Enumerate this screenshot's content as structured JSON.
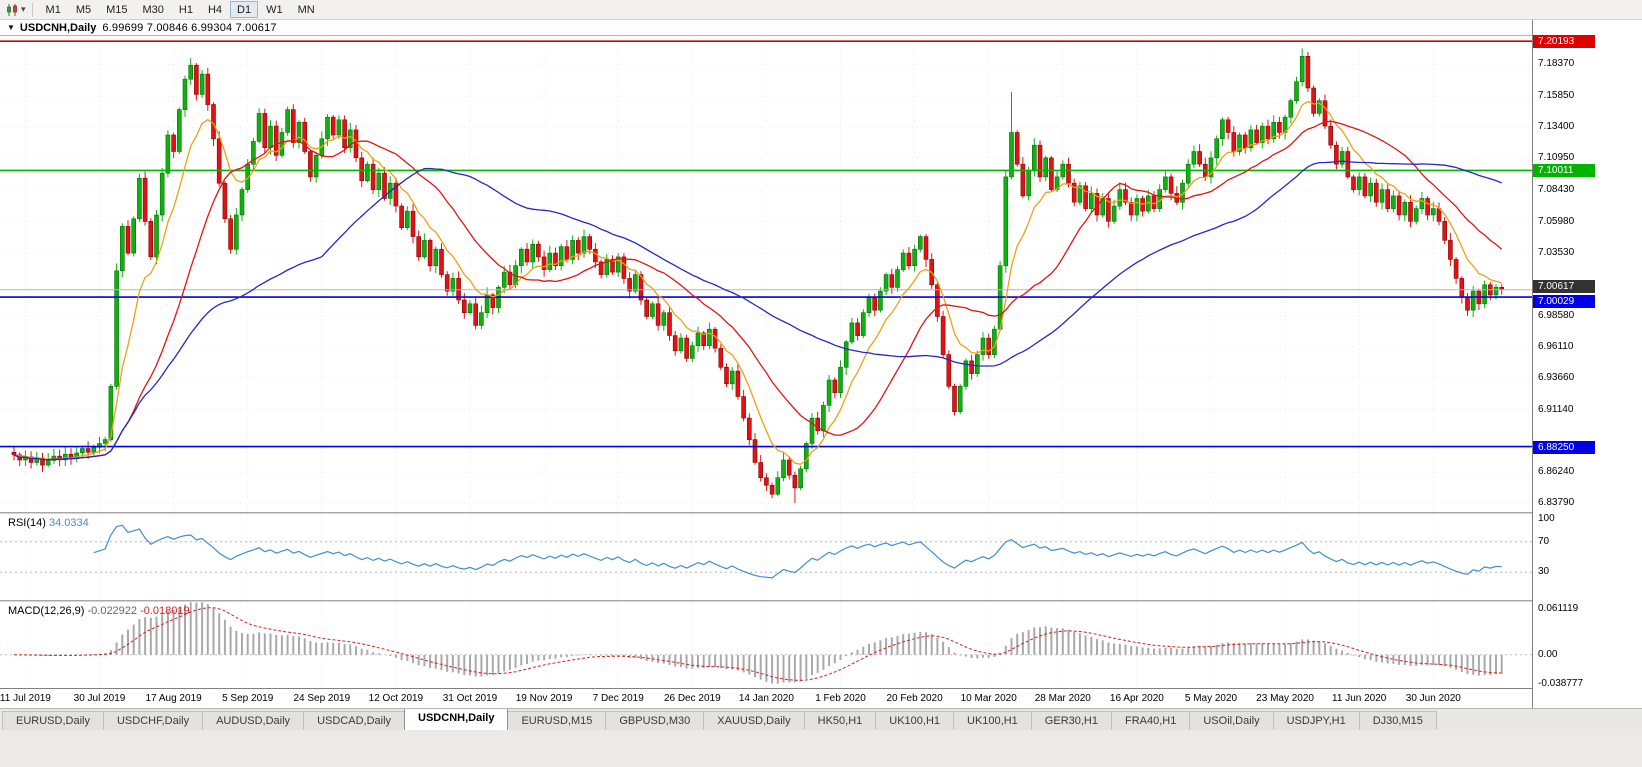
{
  "toolbar": {
    "timeframes": [
      "M1",
      "M5",
      "M15",
      "M30",
      "H1",
      "H4",
      "D1",
      "W1",
      "MN"
    ],
    "active_timeframe": "D1"
  },
  "icons": {
    "dropdown_caret": "▾",
    "caption_arrow": "▼"
  },
  "chart_header": {
    "symbol_period": "USDCNH,Daily",
    "ohlc": "6.99699 7.00846 6.99304 7.00617"
  },
  "tabs": {
    "active": "USDCNH,Daily",
    "items": [
      "EURUSD,Daily",
      "USDCHF,Daily",
      "AUDUSD,Daily",
      "USDCAD,Daily",
      "USDCNH,Daily",
      "EURUSD,M15",
      "GBPUSD,M30",
      "XAUUSD,Daily",
      "HK50,H1",
      "UK100,H1",
      "UK100,H1",
      "GER30,H1",
      "FRA40,H1",
      "USOil,Daily",
      "USDJPY,H1",
      "DJ30,M15"
    ]
  },
  "chart_data": {
    "type": "candlestick",
    "title": "USDCNH Daily",
    "symbol": "USDCNH",
    "timeframe": "Daily",
    "current_bar_ohlc": {
      "open": 6.99699,
      "high": 7.00846,
      "low": 6.99304,
      "close": 7.00617
    },
    "price_range": {
      "min": 6.831,
      "max": 7.206
    },
    "up_color": "#10b010",
    "up_border": "#067306",
    "down_color": "#e01212",
    "down_border": "#8c0606",
    "price_axis_ticks": [
      "7.18370",
      "7.15850",
      "7.13400",
      "7.10950",
      "7.08430",
      "7.05980",
      "7.03530",
      "6.98580",
      "6.96110",
      "6.93660",
      "6.91140",
      "6.86240",
      "6.83790"
    ],
    "x_labels": [
      "11 Jul 2019",
      "30 Jul 2019",
      "17 Aug 2019",
      "5 Sep 2019",
      "24 Sep 2019",
      "12 Oct 2019",
      "31 Oct 2019",
      "19 Nov 2019",
      "7 Dec 2019",
      "26 Dec 2019",
      "14 Jan 2020",
      "1 Feb 2020",
      "20 Feb 2020",
      "10 Mar 2020",
      "28 Mar 2020",
      "16 Apr 2020",
      "5 May 2020",
      "23 May 2020",
      "11 Jun 2020",
      "30 Jun 2020"
    ],
    "label_start_index": 2,
    "label_step": 13,
    "first_open": 6.878,
    "closes": [
      6.876,
      6.872,
      6.8745,
      6.87,
      6.8735,
      6.868,
      6.8715,
      6.875,
      6.872,
      6.8765,
      6.873,
      6.8775,
      6.881,
      6.878,
      6.882,
      6.885,
      6.888,
      6.93,
      7.021,
      7.056,
      7.035,
      7.062,
      7.094,
      7.06,
      7.032,
      7.065,
      7.098,
      7.128,
      7.115,
      7.148,
      7.172,
      7.183,
      7.16,
      7.176,
      7.152,
      7.125,
      7.09,
      7.062,
      7.038,
      7.065,
      7.085,
      7.105,
      7.123,
      7.145,
      7.118,
      7.135,
      7.112,
      7.13,
      7.148,
      7.122,
      7.138,
      7.115,
      7.095,
      7.112,
      7.125,
      7.142,
      7.128,
      7.14,
      7.118,
      7.132,
      7.11,
      7.092,
      7.105,
      7.085,
      7.098,
      7.078,
      7.09,
      7.072,
      7.055,
      7.068,
      7.048,
      7.032,
      7.045,
      7.025,
      7.038,
      7.018,
      7.005,
      7.015,
      6.998,
      6.988,
      6.995,
      6.978,
      6.988,
      7.002,
      6.992,
      7.008,
      7.02,
      7.01,
      7.025,
      7.038,
      7.028,
      7.042,
      7.032,
      7.022,
      7.035,
      7.025,
      7.04,
      7.03,
      7.045,
      7.035,
      7.048,
      7.038,
      7.028,
      7.018,
      7.03,
      7.02,
      7.032,
      7.015,
      7.005,
      7.018,
      6.998,
      6.985,
      6.995,
      6.978,
      6.988,
      6.97,
      6.958,
      6.968,
      6.952,
      6.962,
      6.972,
      6.962,
      6.975,
      6.96,
      6.945,
      6.932,
      6.942,
      6.922,
      6.905,
      6.888,
      6.87,
      6.858,
      6.852,
      6.845,
      6.858,
      6.872,
      6.86,
      6.85,
      6.865,
      6.885,
      6.905,
      6.895,
      6.915,
      6.935,
      6.925,
      6.945,
      6.965,
      6.98,
      6.97,
      6.988,
      7.0,
      6.99,
      7.005,
      7.018,
      7.008,
      7.022,
      7.035,
      7.025,
      7.038,
      7.048,
      7.03,
      7.01,
      6.985,
      6.955,
      6.93,
      6.91,
      6.93,
      6.95,
      6.94,
      6.955,
      6.968,
      6.955,
      6.975,
      7.025,
      7.095,
      7.13,
      7.105,
      7.08,
      7.1,
      7.12,
      7.095,
      7.11,
      7.085,
      7.095,
      7.105,
      7.09,
      7.075,
      7.088,
      7.07,
      7.082,
      7.065,
      7.078,
      7.06,
      7.072,
      7.085,
      7.075,
      7.065,
      7.078,
      7.068,
      7.08,
      7.07,
      7.085,
      7.095,
      7.082,
      7.075,
      7.09,
      7.105,
      7.115,
      7.105,
      7.095,
      7.11,
      7.125,
      7.14,
      7.13,
      7.115,
      7.128,
      7.118,
      7.132,
      7.122,
      7.135,
      7.125,
      7.138,
      7.13,
      7.142,
      7.155,
      7.17,
      7.19,
      7.165,
      7.145,
      7.155,
      7.135,
      7.12,
      7.105,
      7.115,
      7.095,
      7.085,
      7.095,
      7.08,
      7.09,
      7.075,
      7.085,
      7.07,
      7.08,
      7.065,
      7.075,
      7.06,
      7.07,
      7.078,
      7.065,
      7.07,
      7.06,
      7.045,
      7.03,
      7.015,
      7.0,
      6.99,
      7.005,
      6.995,
      7.01,
      7.002,
      7.008,
      7.00617
    ],
    "high_overrides": {
      "31": 7.1885,
      "175": 7.162,
      "226": 7.1962
    },
    "low_overrides": {
      "133": 6.842,
      "137": 6.838,
      "255": 6.9855
    },
    "horizontal_lines": [
      {
        "label": "7.20193",
        "value": 7.20193,
        "color": "#e00000"
      },
      {
        "label": "7.10011",
        "value": 7.10011,
        "color": "#00b400"
      },
      {
        "label": "7.00029",
        "value": 7.00029,
        "color": "#0000e6",
        "badge_dy": 4
      },
      {
        "label": "6.88250",
        "value": 6.8825,
        "color": "#0000e6",
        "badge_dy": 0
      }
    ],
    "current_price": {
      "label": "7.00617",
      "value": 7.00617,
      "line_color": "#b5b5b5",
      "badge_color": "#333333",
      "badge_dy": -4
    },
    "moving_averages": [
      {
        "type": "ema",
        "period": 9,
        "color": "#eda114"
      },
      {
        "type": "sma",
        "period": 21,
        "color": "#e01414"
      },
      {
        "type": "sma",
        "period": 55,
        "color": "#2727c8"
      }
    ],
    "grid_color": "#ececec",
    "indicators": {
      "rsi": {
        "title": "RSI(14)",
        "value": "34.0334",
        "period": 14,
        "color": "#3f8fce",
        "levels": [
          70,
          30
        ],
        "axis_labels": [
          "100",
          "70",
          "30"
        ],
        "scale": [
          0,
          100
        ]
      },
      "macd": {
        "title": "MACD(12,26,9)",
        "value_main": "-0.022922",
        "value_signal": "-0.018019",
        "fast": 12,
        "slow": 26,
        "signal": 9,
        "hist_color": "#a9a9a9",
        "signal_color": "#d22222",
        "axis_labels": [
          "0.061119",
          "0.00",
          "-0.038777"
        ],
        "scale_max": 0.07,
        "scale_min": -0.044
      }
    }
  }
}
